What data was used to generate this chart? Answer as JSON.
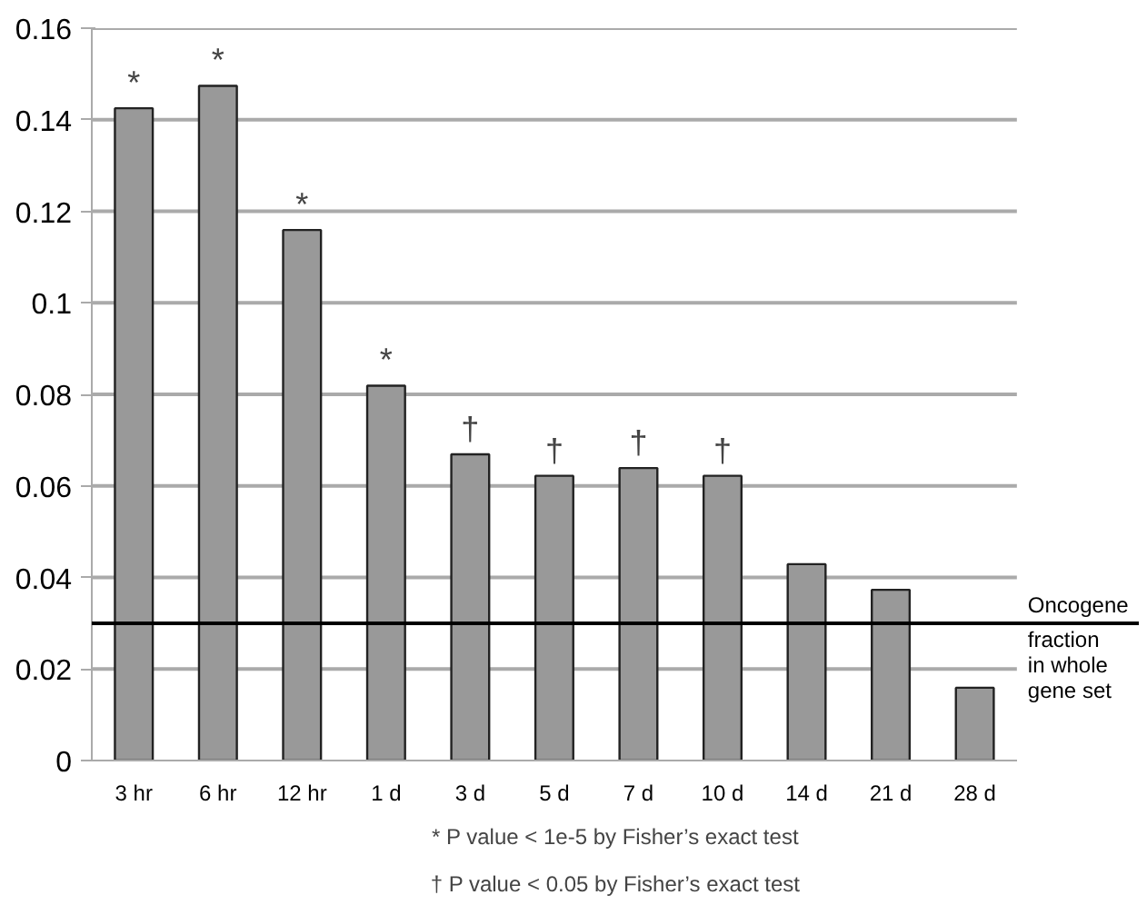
{
  "chart_data": {
    "type": "bar",
    "categories": [
      "3 hr",
      "6 hr",
      "12 hr",
      "1 d",
      "3 d",
      "5 d",
      "7 d",
      "10 d",
      "14 d",
      "21 d",
      "28 d"
    ],
    "values": [
      0.1425,
      0.1474,
      0.1159,
      0.0819,
      0.0669,
      0.0622,
      0.0639,
      0.0622,
      0.0429,
      0.0373,
      0.0159
    ],
    "color": "#999999",
    "ylim": [
      0,
      0.16
    ],
    "yticks": [
      0,
      0.02,
      0.04,
      0.06,
      0.08,
      0.1,
      0.12,
      0.14,
      0.16
    ],
    "grid": "y",
    "ref_lines": [
      {
        "axis": "y",
        "value": 0.03,
        "label": "Oncogene fraction in whole gene set",
        "color": "#000000"
      }
    ],
    "annotations": [
      {
        "text": "*",
        "x": "3 hr",
        "y": 0.1425
      },
      {
        "text": "*",
        "x": "6 hr",
        "y": 0.1474
      },
      {
        "text": "*",
        "x": "12 hr",
        "y": 0.1159
      },
      {
        "text": "*",
        "x": "1 d",
        "y": 0.0819
      },
      {
        "text": "†",
        "x": "3 d",
        "y": 0.0669
      },
      {
        "text": "†",
        "x": "5 d",
        "y": 0.0622
      },
      {
        "text": "†",
        "x": "7 d",
        "y": 0.0639
      },
      {
        "text": "†",
        "x": "10 d",
        "y": 0.0622
      },
      "* P value < 1e-5 by Fisher’s exact test",
      "† P value < 0.05 by Fisher’s exact test"
    ]
  }
}
